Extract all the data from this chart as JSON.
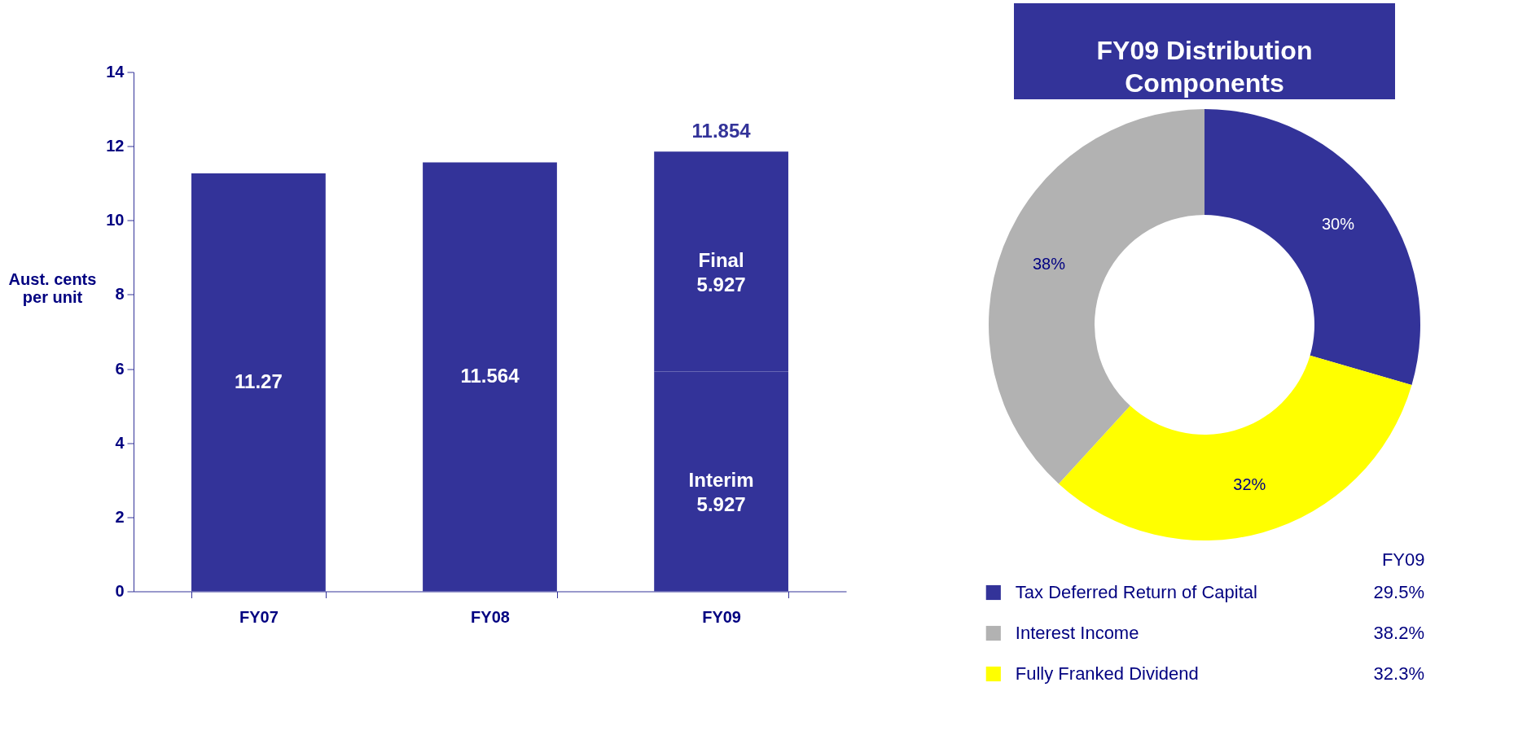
{
  "chart_data": [
    {
      "type": "bar",
      "ylabel": "Aust. cents per unit",
      "categories": [
        "FY07",
        "FY08",
        "FY09"
      ],
      "stacked": true,
      "data_labels": true,
      "grid": false,
      "legend": false,
      "ylim": [
        0,
        14
      ],
      "yticks": [
        0,
        2,
        4,
        6,
        8,
        10,
        12,
        14
      ],
      "totals": [
        null,
        null,
        "11.854"
      ],
      "series": [
        {
          "color": "#333399",
          "values": [
            11.27,
            11.564,
            null
          ]
        },
        {
          "name": "Interim",
          "color": "#333399",
          "values": [
            null,
            null,
            5.927
          ]
        },
        {
          "name": "Final",
          "color": "#333399",
          "values": [
            null,
            null,
            5.927
          ]
        }
      ]
    },
    {
      "type": "donut",
      "title": "FY09 Distribution Components",
      "legend_title": "FY09",
      "legend": "bottom",
      "categories": [
        "Tax Deferred Return of Capital",
        "Interest Income",
        "Fully Franked Dividend"
      ],
      "values": [
        29.5,
        38.2,
        32.3
      ],
      "colors": [
        "#333399",
        "#b2b2b2",
        "#ffff00"
      ],
      "value_labels": [
        "30%",
        "38%",
        "32%"
      ],
      "annotations": [
        "29.5%",
        "38.2%",
        "32.3%"
      ]
    }
  ]
}
